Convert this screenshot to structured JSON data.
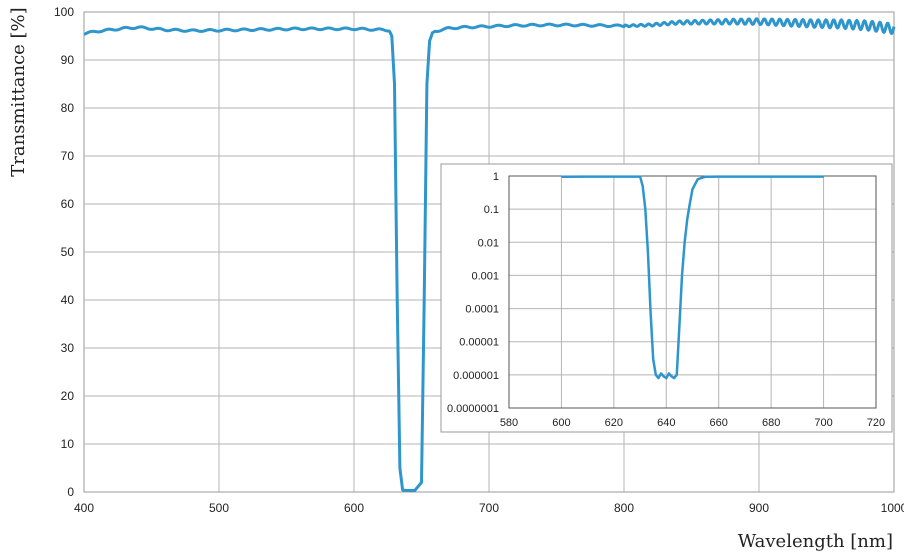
{
  "chart_data": [
    {
      "type": "line",
      "xlabel": "Wavelength [nm]",
      "ylabel": "Transmittance [%]",
      "xlim": [
        400,
        1000
      ],
      "ylim": [
        0,
        100
      ],
      "x_ticks": [
        "400",
        "500",
        "600",
        "700",
        "800",
        "900",
        "1000"
      ],
      "y_ticks": [
        "0",
        "10",
        "20",
        "30",
        "40",
        "50",
        "60",
        "70",
        "80",
        "90",
        "100"
      ],
      "grid": true,
      "line_color": "#2e96cc",
      "series": [
        {
          "x": [
            400,
            410,
            420,
            430,
            440,
            460,
            480,
            500,
            520,
            540,
            560,
            580,
            600,
            610,
            620,
            626,
            628,
            630,
            632,
            634,
            636,
            640,
            645,
            650,
            652,
            654,
            656,
            658,
            660,
            670,
            680,
            700,
            720,
            740,
            760,
            780,
            800,
            820,
            840,
            860,
            880,
            900,
            920,
            940,
            960,
            980,
            1000
          ],
          "y": [
            95.5,
            96.0,
            96.3,
            96.6,
            96.8,
            96.3,
            96.1,
            96.2,
            96.3,
            96.4,
            96.5,
            96.5,
            96.5,
            96.4,
            96.3,
            96.2,
            95.0,
            85.0,
            40.0,
            5.0,
            0.4,
            0.3,
            0.3,
            2.0,
            40.0,
            85.0,
            94.0,
            95.5,
            96.0,
            96.6,
            96.8,
            97.0,
            97.2,
            97.3,
            97.3,
            97.2,
            97.1,
            97.3,
            97.8,
            97.9,
            98.0,
            98.0,
            97.8,
            97.6,
            97.5,
            97.2,
            96.5
          ]
        }
      ]
    },
    {
      "type": "line",
      "scale_y": "log",
      "xlim": [
        580,
        720
      ],
      "ylim": [
        1e-07,
        1
      ],
      "x_ticks": [
        "580",
        "600",
        "620",
        "640",
        "660",
        "680",
        "700",
        "720"
      ],
      "y_ticks": [
        "1",
        "0.1",
        "0.01",
        "0.001",
        "0.0001",
        "0.00001",
        "0.000001",
        "0.0000001"
      ],
      "grid": true,
      "line_color": "#2e96cc",
      "series": [
        {
          "x": [
            600,
            610,
            620,
            630,
            631,
            632,
            633,
            634,
            635,
            636,
            637,
            638,
            639,
            640,
            641,
            642,
            643,
            644,
            645,
            646,
            647,
            648,
            649,
            650,
            652,
            655,
            660,
            670,
            680,
            690,
            700
          ],
          "y": [
            0.95,
            0.96,
            0.96,
            0.96,
            0.5,
            0.1,
            0.005,
            8e-05,
            3e-06,
            1e-06,
            8e-07,
            1.1e-06,
            9e-07,
            8e-07,
            1.1e-06,
            9e-07,
            8e-07,
            1e-06,
            3e-05,
            0.001,
            0.01,
            0.05,
            0.15,
            0.4,
            0.8,
            0.95,
            0.96,
            0.96,
            0.96,
            0.96,
            0.96
          ]
        }
      ]
    }
  ]
}
